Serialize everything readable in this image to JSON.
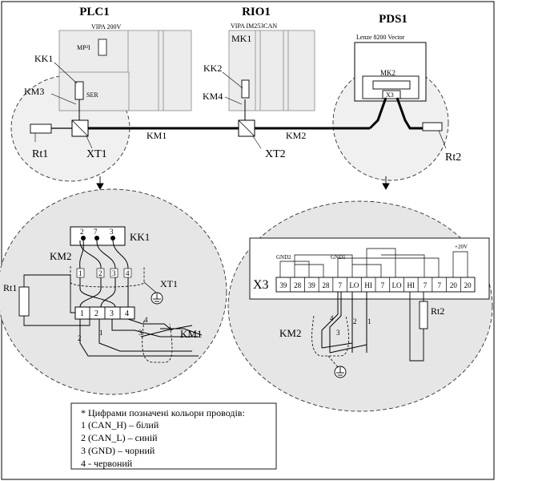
{
  "devices": {
    "plc": {
      "title": "PLC1",
      "cpu": "VIPA 200V",
      "mpi": "MP²I",
      "ser": "SER"
    },
    "rio": {
      "title": "RIO1",
      "model": "VIPA IM253CAN",
      "mk": "MK1"
    },
    "pds": {
      "title": "PDS1",
      "model": "Lenze 8200 Vector",
      "mk": "MK2",
      "x3": "X3"
    }
  },
  "labels": {
    "kk1": "KK1",
    "km3": "KM3",
    "rt1": "Rt1",
    "xt1": "XT1",
    "km1": "KM1",
    "km2": "KM2",
    "kk2": "KK2",
    "km4": "KM4",
    "xt2": "XT2",
    "rt2": "Rt2"
  },
  "detail_left": {
    "kk1": "KK1",
    "km2": "KM2",
    "xt1": "XT1",
    "rt1": "Rt1",
    "km1": "KM1",
    "connector_pins": [
      "2",
      "7",
      "3"
    ],
    "terminal_nums": [
      "1",
      "2",
      "3",
      "4"
    ],
    "wire_nums_top": [
      "1",
      "2",
      "3",
      "4"
    ],
    "wire_nums_right": [
      "4",
      "3"
    ],
    "wire_nums_bottom": [
      "2",
      "1"
    ]
  },
  "detail_right": {
    "x3": "X3",
    "terminals": [
      "39",
      "28",
      "39",
      "28",
      "7",
      "LO",
      "HI",
      "7",
      "LO",
      "HI",
      "7",
      "7",
      "20",
      "20"
    ],
    "gnd2": "GND2",
    "gnd1": "GND1",
    "plus20v": "+20V",
    "rt2": "Rt2",
    "km2": "KM2",
    "wire_nums": [
      "4",
      "3",
      "2",
      "1"
    ]
  },
  "legend": {
    "title": "* Цифрами позначені кольори проводів:",
    "items": [
      "1 (CAN_H) – білий",
      "2 (CAN_L) – синій",
      "3 (GND) – чорний",
      "4 - червоний"
    ]
  }
}
